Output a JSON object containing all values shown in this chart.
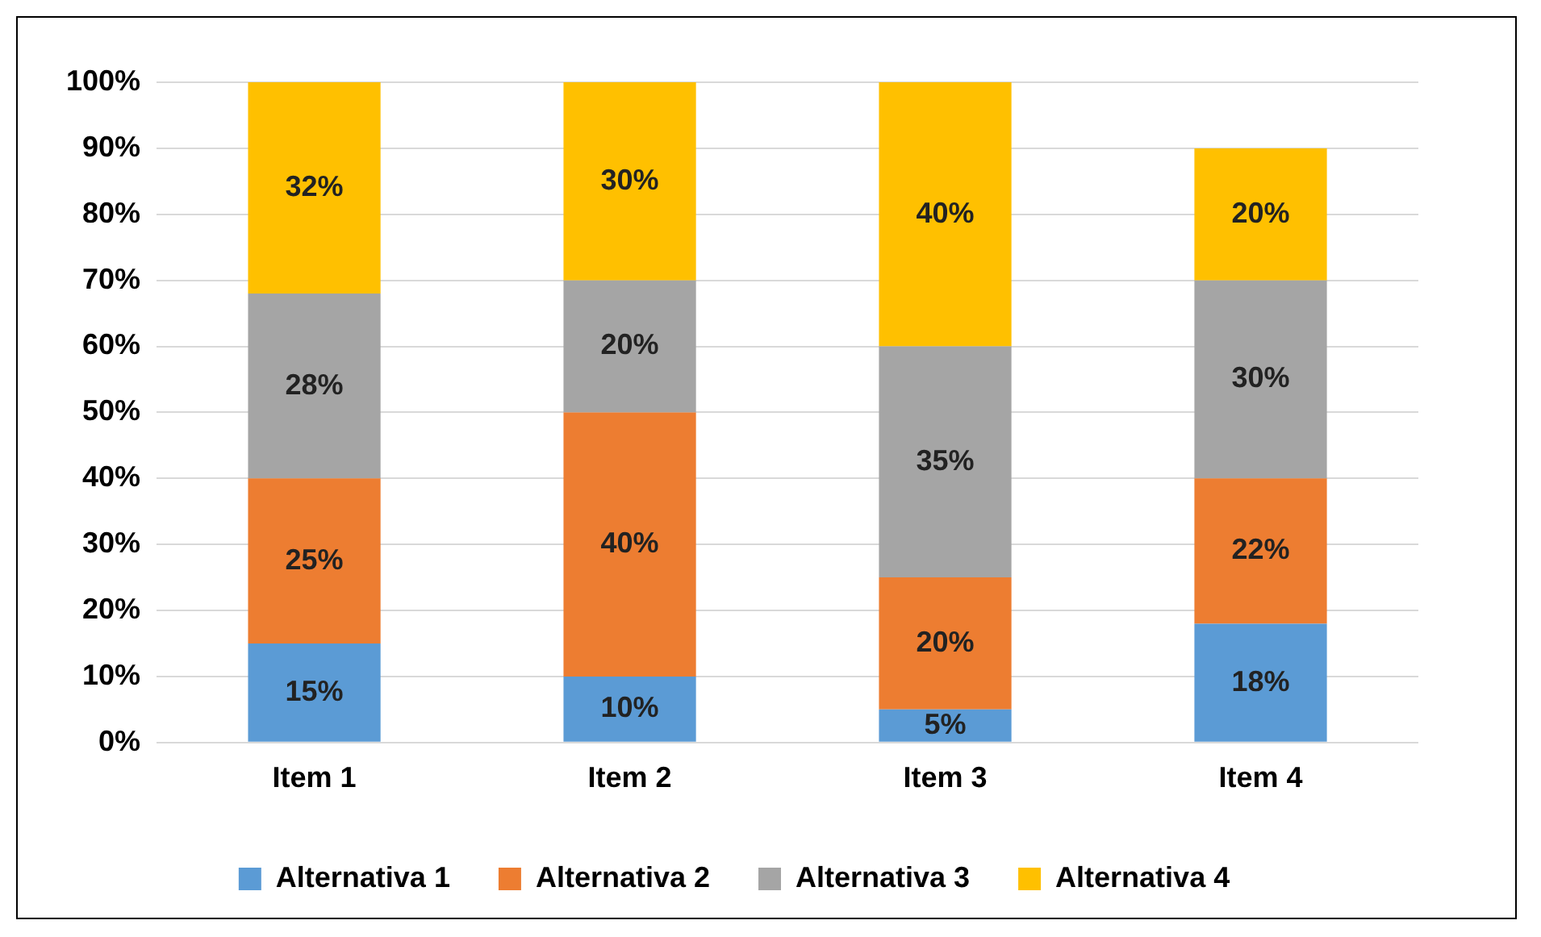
{
  "chart_data": {
    "type": "bar",
    "stacked": true,
    "categories": [
      "Item 1",
      "Item 2",
      "Item 3",
      "Item 4"
    ],
    "series": [
      {
        "name": "Alternativa 1",
        "color": "#5b9bd5",
        "values": [
          15,
          10,
          5,
          18
        ],
        "value_labels": [
          "15%",
          "10%",
          "5%",
          "18%"
        ]
      },
      {
        "name": "Alternativa 2",
        "color": "#ed7d31",
        "values": [
          25,
          40,
          20,
          22
        ],
        "value_labels": [
          "25%",
          "40%",
          "20%",
          "22%"
        ]
      },
      {
        "name": "Alternativa 3",
        "color": "#a5a5a5",
        "values": [
          28,
          20,
          35,
          30
        ],
        "value_labels": [
          "28%",
          "20%",
          "35%",
          "30%"
        ]
      },
      {
        "name": "Alternativa 4",
        "color": "#ffc000",
        "values": [
          32,
          30,
          40,
          20
        ],
        "value_labels": [
          "32%",
          "30%",
          "40%",
          "20%"
        ]
      }
    ],
    "ylim": [
      0,
      100
    ],
    "yticks": [
      {
        "value": 0,
        "label": "0%"
      },
      {
        "value": 10,
        "label": "10%"
      },
      {
        "value": 20,
        "label": "20%"
      },
      {
        "value": 30,
        "label": "30%"
      },
      {
        "value": 40,
        "label": "40%"
      },
      {
        "value": 50,
        "label": "50%"
      },
      {
        "value": 60,
        "label": "60%"
      },
      {
        "value": 70,
        "label": "70%"
      },
      {
        "value": 80,
        "label": "80%"
      },
      {
        "value": 90,
        "label": "90%"
      },
      {
        "value": 100,
        "label": "100%"
      }
    ],
    "grid": "y",
    "legend": "bottom"
  }
}
